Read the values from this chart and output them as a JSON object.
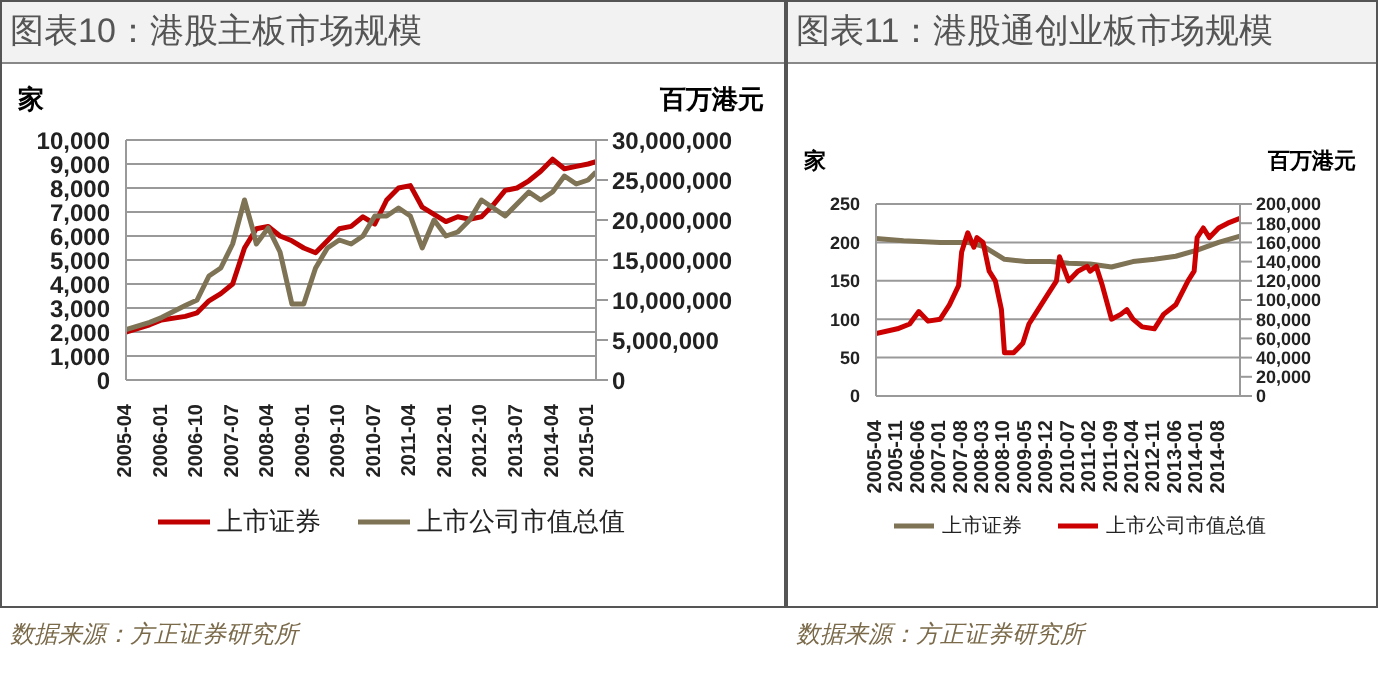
{
  "chart_data": [
    {
      "type": "line",
      "title": "图表10：港股主板市场规模",
      "ylabel": "家",
      "y2label": "百万港元",
      "legend": "bottom",
      "grid": "y",
      "xlim": [
        "2005-04",
        "2015-03"
      ],
      "xticks": [
        "2005-04",
        "2006-01",
        "2006-10",
        "2007-07",
        "2008-04",
        "2009-01",
        "2009-10",
        "2010-07",
        "2011-04",
        "2012-01",
        "2012-10",
        "2013-07",
        "2014-04",
        "2015-01"
      ],
      "ylim": [
        0,
        10000
      ],
      "yticks": [
        0,
        {
          "value": 1000,
          "label": "1,000"
        },
        {
          "value": 2000,
          "label": "2,000"
        },
        {
          "value": 3000,
          "label": "3,000"
        },
        {
          "value": 4000,
          "label": "4,000"
        },
        {
          "value": 5000,
          "label": "5,000"
        },
        {
          "value": 6000,
          "label": "6,000"
        },
        {
          "value": 7000,
          "label": "7,000"
        },
        {
          "value": 8000,
          "label": "8,000"
        },
        {
          "value": 9000,
          "label": "9,000"
        },
        {
          "value": 10000,
          "label": "10,000"
        }
      ],
      "y2lim": [
        0,
        30000000
      ],
      "y2ticks": [
        0,
        {
          "value": 5000000,
          "label": "5,000,000"
        },
        {
          "value": 10000000,
          "label": "10,000,000"
        },
        {
          "value": 15000000,
          "label": "15,000,000"
        },
        {
          "value": 20000000,
          "label": "20,000,000"
        },
        {
          "value": 25000000,
          "label": "25,000,000"
        },
        {
          "value": 30000000,
          "label": "30,000,000"
        }
      ],
      "annotations": [
        "数据来源：方正证券研究所"
      ],
      "series": [
        {
          "name": "上市证券",
          "color": "#c00000",
          "x": [
            "2005-04",
            "2005-10",
            "2006-01",
            "2006-07",
            "2006-10",
            "2007-01",
            "2007-04",
            "2007-07",
            "2007-10",
            "2008-01",
            "2008-04",
            "2008-07",
            "2008-10",
            "2009-01",
            "2009-04",
            "2009-07",
            "2009-10",
            "2010-01",
            "2010-04",
            "2010-07",
            "2010-10",
            "2011-01",
            "2011-04",
            "2011-07",
            "2011-10",
            "2012-01",
            "2012-04",
            "2012-07",
            "2012-10",
            "2013-01",
            "2013-04",
            "2013-07",
            "2013-10",
            "2014-01",
            "2014-04",
            "2014-07",
            "2014-10",
            "2015-01",
            "2015-03"
          ],
          "values": [
            2000,
            2300,
            2500,
            2650,
            2800,
            3300,
            3600,
            4000,
            5500,
            6300,
            6400,
            6000,
            5800,
            5500,
            5300,
            5800,
            6300,
            6400,
            6800,
            6500,
            7500,
            8000,
            8100,
            7200,
            6900,
            6600,
            6800,
            6700,
            6800,
            7300,
            7900,
            8000,
            8300,
            8700,
            9200,
            8800,
            8900,
            9000,
            9100
          ]
        },
        {
          "name": "上市公司市值总值",
          "color": "#7f7355",
          "axis": "y2",
          "x": [
            "2005-04",
            "2005-10",
            "2006-01",
            "2006-07",
            "2006-10",
            "2007-01",
            "2007-04",
            "2007-07",
            "2007-10",
            "2007-12",
            "2008-01",
            "2008-04",
            "2008-07",
            "2008-10",
            "2009-01",
            "2009-04",
            "2009-07",
            "2009-10",
            "2010-01",
            "2010-04",
            "2010-07",
            "2010-10",
            "2011-01",
            "2011-04",
            "2011-07",
            "2011-10",
            "2012-01",
            "2012-04",
            "2012-07",
            "2012-10",
            "2013-01",
            "2013-04",
            "2013-07",
            "2013-10",
            "2014-01",
            "2014-04",
            "2014-07",
            "2014-10",
            "2015-01",
            "2015-03"
          ],
          "values": [
            6300000,
            7200000,
            7800000,
            9300000,
            10000000,
            13000000,
            14000000,
            17000000,
            22500000,
            19000000,
            17000000,
            19000000,
            16000000,
            9500000,
            9500000,
            14000000,
            16500000,
            17500000,
            17000000,
            18000000,
            20500000,
            20500000,
            21500000,
            20500000,
            16500000,
            20000000,
            18000000,
            18500000,
            20000000,
            22500000,
            21500000,
            20500000,
            22000000,
            23500000,
            22500000,
            23500000,
            25500000,
            24500000,
            25000000,
            26000000
          ]
        }
      ]
    },
    {
      "type": "line",
      "title": "图表11：港股通创业板市场规模",
      "ylabel": "家",
      "y2label": "百万港元",
      "legend": "bottom",
      "grid": "y",
      "xlim": [
        "2005-04",
        "2015-03"
      ],
      "xticks": [
        "2005-04",
        "2005-11",
        "2006-06",
        "2007-01",
        "2007-08",
        "2008-03",
        "2008-10",
        "2009-05",
        "2009-12",
        "2010-07",
        "2011-02",
        "2011-09",
        "2012-04",
        "2012-11",
        "2013-06",
        "2014-01",
        "2014-08"
      ],
      "ylim": [
        0,
        250
      ],
      "yticks": [
        0,
        50,
        100,
        150,
        200,
        250
      ],
      "y2lim": [
        0,
        200000
      ],
      "y2ticks": [
        0,
        {
          "value": 20000,
          "label": "20,000"
        },
        {
          "value": 40000,
          "label": "40,000"
        },
        {
          "value": 60000,
          "label": "60,000"
        },
        {
          "value": 80000,
          "label": "80,000"
        },
        {
          "value": 100000,
          "label": "100,000"
        },
        {
          "value": 120000,
          "label": "120,000"
        },
        {
          "value": 140000,
          "label": "140,000"
        },
        {
          "value": 160000,
          "label": "160,000"
        },
        {
          "value": 180000,
          "label": "180,000"
        },
        {
          "value": 200000,
          "label": "200,000"
        }
      ],
      "annotations": [
        "数据来源：方正证券研究所"
      ],
      "series": [
        {
          "name": "上市证券",
          "color": "#7f7355",
          "x": [
            "2005-04",
            "2006-01",
            "2007-01",
            "2007-10",
            "2008-03",
            "2008-10",
            "2009-05",
            "2010-01",
            "2010-07",
            "2011-02",
            "2011-09",
            "2012-04",
            "2012-11",
            "2013-06",
            "2014-01",
            "2014-08",
            "2015-03"
          ],
          "values": [
            205,
            202,
            200,
            200,
            195,
            178,
            175,
            175,
            173,
            172,
            168,
            175,
            178,
            182,
            190,
            200,
            208
          ]
        },
        {
          "name": "上市公司市值总值",
          "color": "#cc0000",
          "axis": "y2",
          "x": [
            "2005-04",
            "2005-11",
            "2006-03",
            "2006-06",
            "2006-09",
            "2007-01",
            "2007-04",
            "2007-07",
            "2007-08",
            "2007-10",
            "2007-12",
            "2008-01",
            "2008-03",
            "2008-05",
            "2008-07",
            "2008-09",
            "2008-10",
            "2009-01",
            "2009-04",
            "2009-06",
            "2009-08",
            "2009-12",
            "2010-03",
            "2010-04",
            "2010-07",
            "2010-10",
            "2011-01",
            "2011-02",
            "2011-04",
            "2011-06",
            "2011-09",
            "2011-12",
            "2012-02",
            "2012-04",
            "2012-07",
            "2012-11",
            "2013-02",
            "2013-06",
            "2013-10",
            "2013-12",
            "2014-01",
            "2014-03",
            "2014-05",
            "2014-08",
            "2014-11",
            "2015-03"
          ],
          "values": [
            65000,
            70000,
            75000,
            88000,
            78000,
            80000,
            95000,
            115000,
            150000,
            170000,
            155000,
            165000,
            160000,
            130000,
            120000,
            90000,
            45000,
            45000,
            55000,
            75000,
            85000,
            105000,
            120000,
            145000,
            120000,
            130000,
            135000,
            130000,
            135000,
            115000,
            80000,
            85000,
            90000,
            80000,
            72000,
            70000,
            85000,
            95000,
            120000,
            130000,
            165000,
            175000,
            165000,
            175000,
            180000,
            185000
          ]
        }
      ]
    }
  ]
}
